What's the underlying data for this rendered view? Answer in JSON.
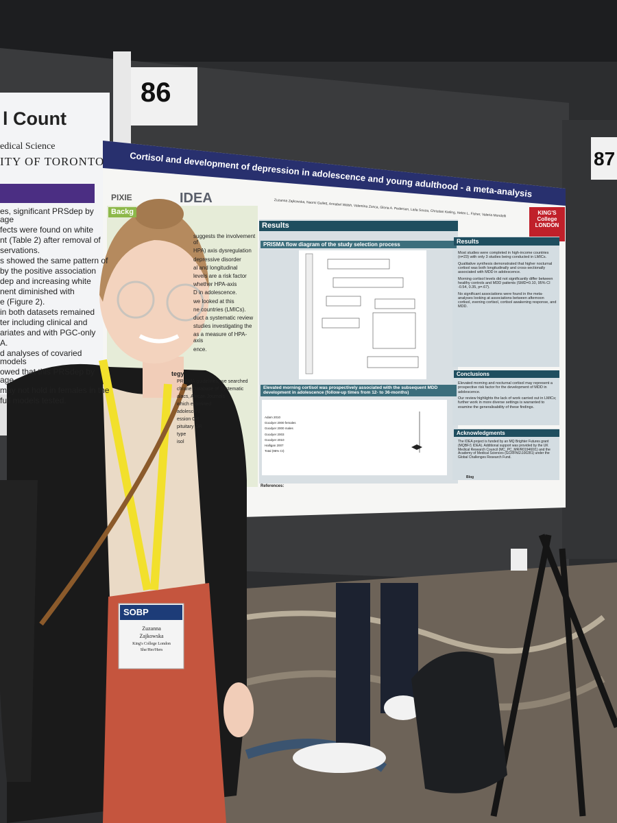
{
  "board": {
    "number": "86",
    "number_right": "87"
  },
  "left_poster": {
    "heading": "l Count",
    "affiliation_1": "edical Science",
    "affiliation_2": "ITY OF TORONTO",
    "lines": [
      "es, significant PRSdep by age",
      "fects were found on white",
      "nt (Table 2) after removal of",
      "servations.",
      "s showed the same pattern of",
      "by the positive association",
      "dep and increasing white",
      "nent diminished with",
      "e (Figure 2).",
      "in both datasets remained",
      "ter including clinical and",
      "ariates and with PGC-only",
      "A.",
      "d analyses of covaried models",
      "owed that this PRSdep by age",
      "may not hold in females in the",
      "full models tested."
    ]
  },
  "poster": {
    "title": "Cortisol and development of depression in adolescence and young adulthood - a meta-analysis",
    "logo_1": "PIXIE",
    "logo_2": "IDEA",
    "institution": "KING'S College LONDON",
    "authors": "Zuzanna Zajkowska, Naomi Gullett, Annabel Walsh, Valentina Zonca, Gloria A. Pedersen, Laila Souza, Christian Kieling, Helen L. Fisher, Valeria Mondelli",
    "background_heading": "Backg",
    "background_lines": [
      "suggests the involvement of",
      "HPA) axis dysregulation",
      "depressive disorder",
      "al and longitudinal",
      "levels are a risk factor",
      "whether HPA-axis",
      "D in adolescence.",
      "we looked at this",
      "ne countries (LMICs).",
      "duct a systematic review",
      "studies investigating the",
      "as a measure of HPA-axis",
      "ence."
    ],
    "strategy_heading": "tegy",
    "strategy_lines": [
      "PRISMA guidelines, we searched",
      "chrane Database of Systematic",
      "alacs, African Journals",
      "which examined",
      "adolescent",
      "ession OR",
      "pituitary OR",
      "type",
      "isol"
    ],
    "results_heading": "Results",
    "prisma_heading": "PRISMA flow diagram of the study selection process",
    "forest_heading": "Elevated morning cortisol was prospectively associated with the subsequent MDD development in adolescence (follow-up times from 12- to 36-months)",
    "studies": [
      "Adam 2010",
      "Goodyer 2000 females",
      "Goodyer 2000 males",
      "Goodyer 2003",
      "Goodyer 2010",
      "Halligan 2007",
      "Total (95% CI)"
    ],
    "right_results_heading": "Results",
    "right_results": [
      "Most studies were completed in high-income countries (n=23) with only 3 studies being conducted in LMICs.",
      "Qualitative synthesis demonstrated that higher nocturnal cortisol was both longitudinally and cross-sectionally associated with MDD in adolescence.",
      "Morning cortisol levels did not significantly differ between healthy controls and MDD patients (SMD=0.10, 95% CI -0.54, 0.35, p=.67).",
      "No significant associations were found in the meta-analyses looking at associations between afternoon cortisol, evening cortisol, cortisol awakening response, and MDD."
    ],
    "conclusions_heading": "Conclusions",
    "conclusions": [
      "Elevated morning and nocturnal cortisol may represent a prospective risk factor for the development of MDD in adolescence.",
      "Our review highlights the lack of work carried out in LMICs; further work in more diverse settings is warranted to examine the generalisability of these findings."
    ],
    "acknowledgments_heading": "Acknowledgments",
    "acknowledgments": "The IDEA project is funded by an MQ Brighter Futures grant (MQBF/1 IDEA). Additional support was provided by the UK Medical Research Council (MC_PC_MR/R019460/1) and the Academy of Medical Sciences (GCRFNG\\100281) under the Global Challenges Research Fund.",
    "references_heading": "References:",
    "blog": "Blog"
  },
  "badge": {
    "org": "SOBP",
    "first_name": "Zuzanna",
    "last_name": "Zajkowska",
    "affiliation": "King's College London",
    "pronouns": "She/Her/Hers"
  }
}
